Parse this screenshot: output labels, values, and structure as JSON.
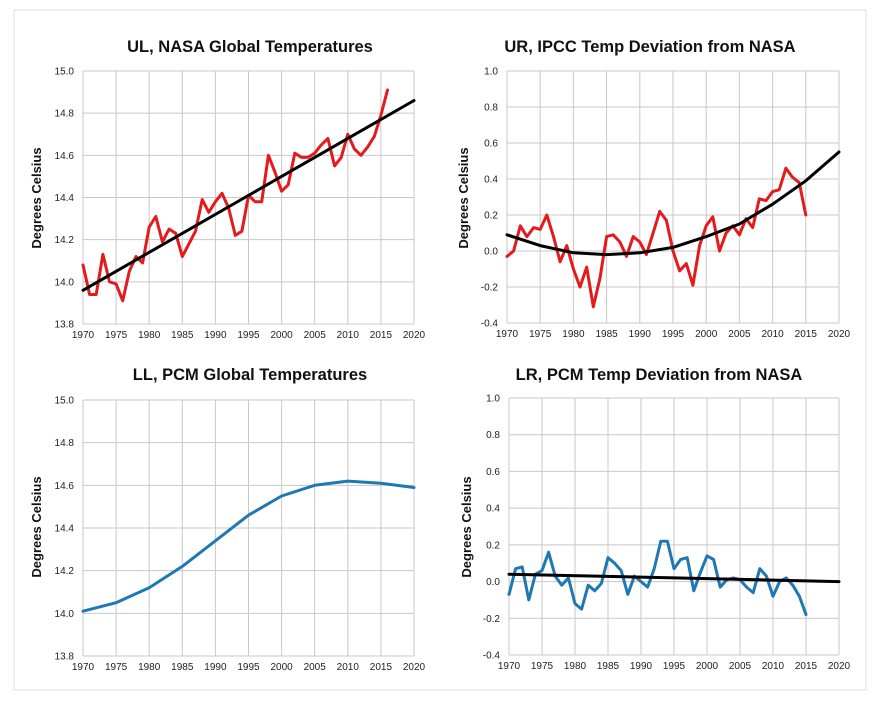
{
  "chart_data": [
    {
      "type": "line",
      "title": "UL, NASA Global Temperatures",
      "ylabel": "Degrees Celsius",
      "xlim": [
        1970,
        2020
      ],
      "ylim": [
        13.8,
        15.0
      ],
      "xticks": [
        1970,
        1975,
        1980,
        1985,
        1990,
        1995,
        2000,
        2005,
        2010,
        2015,
        2020
      ],
      "yticks": [
        "13.8",
        "14.0",
        "14.2",
        "14.4",
        "14.6",
        "14.8",
        "15.0"
      ],
      "grid": true,
      "series": [
        {
          "color": "#e41a1c",
          "x": [
            1970,
            1971,
            1972,
            1973,
            1974,
            1975,
            1976,
            1977,
            1978,
            1979,
            1980,
            1981,
            1982,
            1983,
            1984,
            1985,
            1986,
            1987,
            1988,
            1989,
            1990,
            1991,
            1992,
            1993,
            1994,
            1995,
            1996,
            1997,
            1998,
            1999,
            2000,
            2001,
            2002,
            2003,
            2004,
            2005,
            2006,
            2007,
            2008,
            2009,
            2010,
            2011,
            2012,
            2013,
            2014,
            2015,
            2016
          ],
          "y": [
            14.08,
            13.94,
            13.94,
            14.13,
            14.0,
            13.99,
            13.91,
            14.05,
            14.12,
            14.09,
            14.26,
            14.31,
            14.19,
            14.25,
            14.23,
            14.12,
            14.18,
            14.24,
            14.39,
            14.33,
            14.38,
            14.42,
            14.35,
            14.22,
            14.24,
            14.41,
            14.38,
            14.38,
            14.6,
            14.52,
            14.43,
            14.46,
            14.61,
            14.59,
            14.59,
            14.61,
            14.65,
            14.68,
            14.55,
            14.59,
            14.7,
            14.63,
            14.6,
            14.64,
            14.69,
            14.79,
            14.91
          ]
        },
        {
          "color": "#000000",
          "x": [
            1970,
            2020
          ],
          "y": [
            13.96,
            14.86
          ]
        }
      ]
    },
    {
      "type": "line",
      "title": "UR, IPCC Temp Deviation from NASA",
      "ylabel": "Degrees Celsius",
      "xlim": [
        1970,
        2020
      ],
      "ylim": [
        -0.4,
        1.0
      ],
      "xticks": [
        1970,
        1975,
        1980,
        1985,
        1990,
        1995,
        2000,
        2005,
        2010,
        2015,
        2020
      ],
      "yticks": [
        "-0.4",
        "-0.2",
        "0.0",
        "0.2",
        "0.4",
        "0.6",
        "0.8",
        "1.0"
      ],
      "grid": true,
      "series": [
        {
          "color": "#e41a1c",
          "x": [
            1970,
            1971,
            1972,
            1973,
            1974,
            1975,
            1976,
            1977,
            1978,
            1979,
            1980,
            1981,
            1982,
            1983,
            1984,
            1985,
            1986,
            1987,
            1988,
            1989,
            1990,
            1991,
            1992,
            1993,
            1994,
            1995,
            1996,
            1997,
            1998,
            1999,
            2000,
            2001,
            2002,
            2003,
            2004,
            2005,
            2006,
            2007,
            2008,
            2009,
            2010,
            2011,
            2012,
            2013,
            2014,
            2015
          ],
          "y": [
            -0.03,
            0.0,
            0.14,
            0.08,
            0.13,
            0.12,
            0.2,
            0.08,
            -0.06,
            0.03,
            -0.1,
            -0.2,
            -0.09,
            -0.31,
            -0.15,
            0.08,
            0.09,
            0.05,
            -0.03,
            0.08,
            0.05,
            -0.02,
            0.1,
            0.22,
            0.17,
            0.0,
            -0.11,
            -0.07,
            -0.19,
            0.03,
            0.14,
            0.19,
            0.0,
            0.1,
            0.14,
            0.09,
            0.18,
            0.13,
            0.29,
            0.28,
            0.33,
            0.34,
            0.46,
            0.41,
            0.38,
            0.2
          ]
        },
        {
          "color": "#000000",
          "x": [
            1970,
            1975,
            1980,
            1985,
            1990,
            1995,
            2000,
            2005,
            2010,
            2015,
            2020
          ],
          "y": [
            0.09,
            0.03,
            -0.01,
            -0.02,
            -0.01,
            0.02,
            0.08,
            0.15,
            0.26,
            0.39,
            0.55
          ]
        }
      ]
    },
    {
      "type": "line",
      "title": "LL, PCM Global Temperatures",
      "ylabel": "Degrees Celsius",
      "xlim": [
        1970,
        2020
      ],
      "ylim": [
        13.8,
        15.0
      ],
      "xticks": [
        1970,
        1975,
        1980,
        1985,
        1990,
        1995,
        2000,
        2005,
        2010,
        2015,
        2020
      ],
      "yticks": [
        "13.8",
        "14.0",
        "14.2",
        "14.4",
        "14.6",
        "14.8",
        "15.0"
      ],
      "grid": true,
      "series": [
        {
          "color": "#1f77b4",
          "x": [
            1970,
            1975,
            1980,
            1985,
            1990,
            1995,
            2000,
            2005,
            2010,
            2015,
            2020
          ],
          "y": [
            14.01,
            14.05,
            14.12,
            14.22,
            14.34,
            14.46,
            14.55,
            14.6,
            14.62,
            14.61,
            14.59
          ]
        }
      ]
    },
    {
      "type": "line",
      "title": "LR, PCM Temp Deviation from NASA",
      "ylabel": "Degrees Celsius",
      "xlim": [
        1970,
        2020
      ],
      "ylim": [
        -0.4,
        1.0
      ],
      "xticks": [
        1970,
        1975,
        1980,
        1985,
        1990,
        1995,
        2000,
        2005,
        2010,
        2015,
        2020
      ],
      "yticks": [
        "-0.4",
        "-0.2",
        "0.0",
        "0.2",
        "0.4",
        "0.6",
        "0.8",
        "1.0"
      ],
      "grid": true,
      "series": [
        {
          "color": "#1f77b4",
          "x": [
            1970,
            1971,
            1972,
            1973,
            1974,
            1975,
            1976,
            1977,
            1978,
            1979,
            1980,
            1981,
            1982,
            1983,
            1984,
            1985,
            1986,
            1987,
            1988,
            1989,
            1990,
            1991,
            1992,
            1993,
            1994,
            1995,
            1996,
            1997,
            1998,
            1999,
            2000,
            2001,
            2002,
            2003,
            2004,
            2005,
            2006,
            2007,
            2008,
            2009,
            2010,
            2011,
            2012,
            2013,
            2014,
            2015
          ],
          "y": [
            -0.07,
            0.07,
            0.08,
            -0.1,
            0.04,
            0.06,
            0.16,
            0.03,
            -0.02,
            0.02,
            -0.12,
            -0.15,
            -0.02,
            -0.05,
            -0.01,
            0.13,
            0.1,
            0.06,
            -0.07,
            0.03,
            0.0,
            -0.03,
            0.07,
            0.22,
            0.22,
            0.07,
            0.12,
            0.13,
            -0.05,
            0.05,
            0.14,
            0.12,
            -0.03,
            0.01,
            0.02,
            0.01,
            -0.03,
            -0.06,
            0.07,
            0.03,
            -0.08,
            0.0,
            0.02,
            -0.02,
            -0.08,
            -0.18
          ]
        },
        {
          "color": "#000000",
          "x": [
            1970,
            2020
          ],
          "y": [
            0.04,
            0.0
          ]
        }
      ]
    }
  ]
}
